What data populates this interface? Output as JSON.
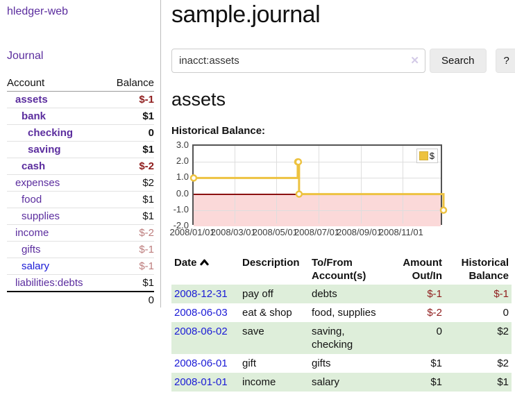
{
  "app": {
    "brand": "hledger-web"
  },
  "nav": {
    "journal": "Journal"
  },
  "sidebar": {
    "accounts": {
      "headers": {
        "account": "Account",
        "balance": "Balance"
      },
      "rows": [
        {
          "name": "assets",
          "balance": "$-1"
        },
        {
          "name": "bank",
          "balance": "$1"
        },
        {
          "name": "checking",
          "balance": "0"
        },
        {
          "name": "saving",
          "balance": "$1"
        },
        {
          "name": "cash",
          "balance": "$-2"
        },
        {
          "name": "expenses",
          "balance": "$2"
        },
        {
          "name": "food",
          "balance": "$1"
        },
        {
          "name": "supplies",
          "balance": "$1"
        },
        {
          "name": "income",
          "balance": "$-2"
        },
        {
          "name": "gifts",
          "balance": "$-1"
        },
        {
          "name": "salary",
          "balance": "$-1"
        },
        {
          "name": "liabilities:debts",
          "balance": "$1"
        }
      ],
      "total": "0"
    }
  },
  "main": {
    "title": "sample.journal",
    "search": {
      "value": "inacct:assets",
      "clear_icon": "✕",
      "button_label": "Search",
      "help_label": "?"
    },
    "account_heading": "assets",
    "chart_heading": "Historical Balance:"
  },
  "chart_data": {
    "type": "line",
    "title": "Historical Balance:",
    "step": true,
    "series": [
      {
        "name": "$",
        "color": "#edc240",
        "points": [
          [
            "2008-01-01",
            1
          ],
          [
            "2008-06-01",
            2
          ],
          [
            "2008-06-02",
            2
          ],
          [
            "2008-06-03",
            0
          ],
          [
            "2008-12-31",
            -1
          ]
        ]
      }
    ],
    "x_range": [
      "2008-01-01",
      "2008-12-31"
    ],
    "x_ticks": [
      "2008/01/01",
      "2008/03/01",
      "2008/05/01",
      "2008/07/01",
      "2008/09/01",
      "2008/11/01"
    ],
    "y_ticks": [
      3.0,
      2.0,
      1.0,
      0.0,
      -1.0,
      -2.0
    ],
    "ylim": [
      -2,
      3
    ],
    "grid": true,
    "legend_position": "top-right",
    "negative_region_color": "#fbd9d9",
    "zero_line_color": "#8b1010"
  },
  "register": {
    "headers": {
      "date": "Date",
      "description": "Description",
      "accounts": "To/From Account(s)",
      "amount": "Amount Out/In",
      "balance": "Historical Balance"
    },
    "rows": [
      {
        "date": "2008-12-31",
        "description": "pay off",
        "accounts": "debts",
        "amount": "$-1",
        "balance": "$-1"
      },
      {
        "date": "2008-06-03",
        "description": "eat & shop",
        "accounts": "food, supplies",
        "amount": "$-2",
        "balance": "0"
      },
      {
        "date": "2008-06-02",
        "description": "save",
        "accounts": "saving, checking",
        "amount": "0",
        "balance": "$2"
      },
      {
        "date": "2008-06-01",
        "description": "gift",
        "accounts": "gifts",
        "amount": "$1",
        "balance": "$2"
      },
      {
        "date": "2008-01-01",
        "description": "income",
        "accounts": "salary",
        "amount": "$1",
        "balance": "$1"
      }
    ]
  }
}
